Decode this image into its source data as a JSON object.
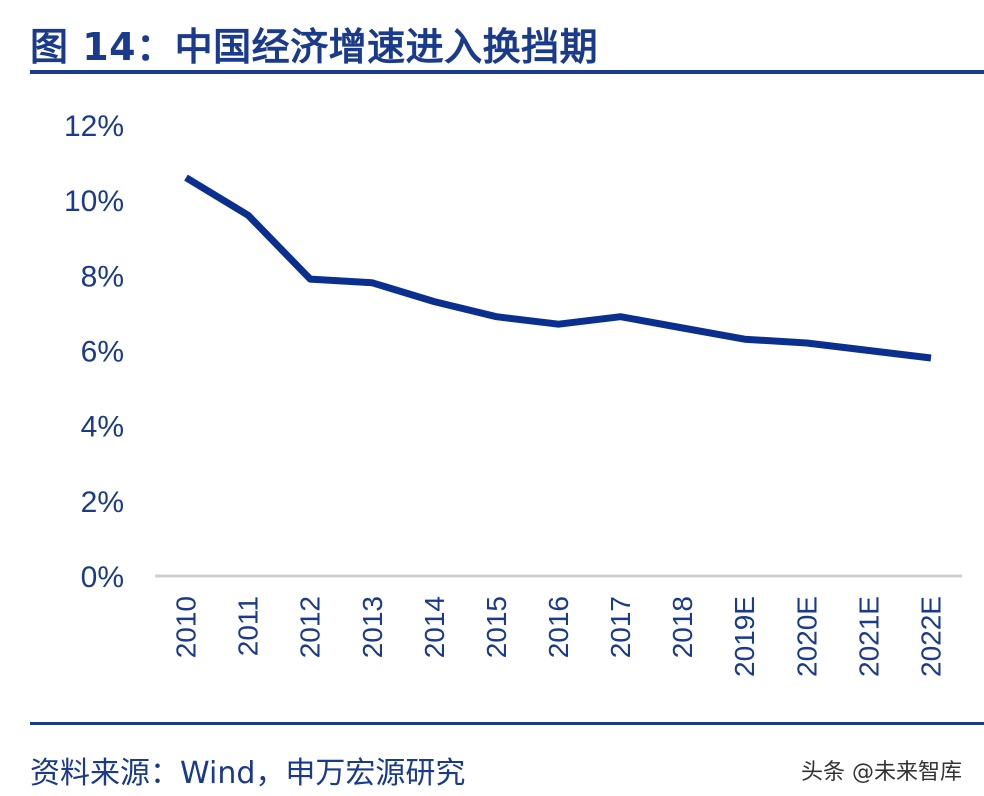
{
  "header": {
    "title": "图 14：中国经济增速进入换挡期"
  },
  "footer": {
    "source": "资料来源：Wind，申万宏源研究",
    "watermark": "头条 @未来智库"
  },
  "colors": {
    "brand": "#1a3a8c",
    "line": "#0b2f8f",
    "axis": "#cfcfcf",
    "tick_text": "#1a3a8c"
  },
  "chart_data": {
    "type": "line",
    "title": "",
    "xlabel": "",
    "ylabel": "",
    "categories": [
      "2010",
      "2011",
      "2012",
      "2013",
      "2014",
      "2015",
      "2016",
      "2017",
      "2018",
      "2019E",
      "2020E",
      "2021E",
      "2022E"
    ],
    "series": [
      {
        "values": [
          10.6,
          9.6,
          7.9,
          7.8,
          7.3,
          6.9,
          6.7,
          6.9,
          6.6,
          6.3,
          6.2,
          6.0,
          5.8
        ]
      }
    ],
    "ylim": [
      0,
      12
    ],
    "yticks": [
      "0%",
      "2%",
      "4%",
      "6%",
      "8%",
      "10%",
      "12%"
    ],
    "grid": false,
    "legend": "none"
  }
}
